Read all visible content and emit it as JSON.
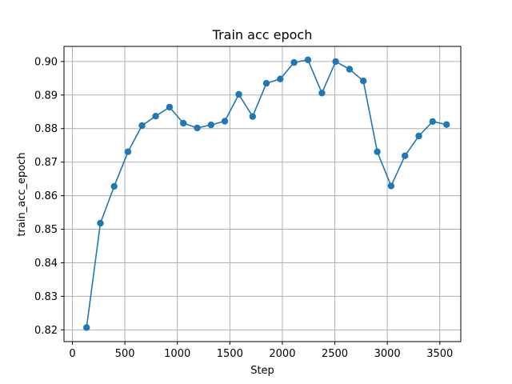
{
  "chart_data": {
    "type": "line",
    "title": "Train acc epoch",
    "xlabel": "Step",
    "ylabel": "train_acc_epoch",
    "xlim": [
      -80,
      3700
    ],
    "ylim": [
      0.8165,
      0.9045
    ],
    "xticks": [
      0,
      500,
      1000,
      1500,
      2000,
      2500,
      3000,
      3500
    ],
    "xtick_labels": [
      "0",
      "500",
      "1000",
      "1500",
      "2000",
      "2500",
      "3000",
      "3500"
    ],
    "yticks": [
      0.82,
      0.83,
      0.84,
      0.85,
      0.86,
      0.87,
      0.88,
      0.89,
      0.9
    ],
    "ytick_labels": [
      "0.82",
      "0.83",
      "0.84",
      "0.85",
      "0.86",
      "0.87",
      "0.88",
      "0.89",
      "0.90"
    ],
    "grid": true,
    "marker": "circle",
    "colors": {
      "series": "#1f77b4",
      "grid": "#b0b0b0",
      "axes": "#000000"
    },
    "series": [
      {
        "x": [
          135,
          267,
          398,
          530,
          663,
          793,
          925,
          1057,
          1189,
          1321,
          1452,
          1585,
          1717,
          1848,
          1980,
          2112,
          2244,
          2377,
          2508,
          2640,
          2772,
          2904,
          3036,
          3168,
          3300,
          3432,
          3564
        ],
        "y": [
          0.8207,
          0.8518,
          0.8628,
          0.8731,
          0.8809,
          0.8837,
          0.8864,
          0.8816,
          0.8802,
          0.8811,
          0.8822,
          0.8902,
          0.8836,
          0.8935,
          0.8948,
          0.8997,
          0.9005,
          0.8906,
          0.9,
          0.8977,
          0.8942,
          0.8731,
          0.8629,
          0.8719,
          0.8778,
          0.8821,
          0.8812
        ]
      }
    ]
  }
}
